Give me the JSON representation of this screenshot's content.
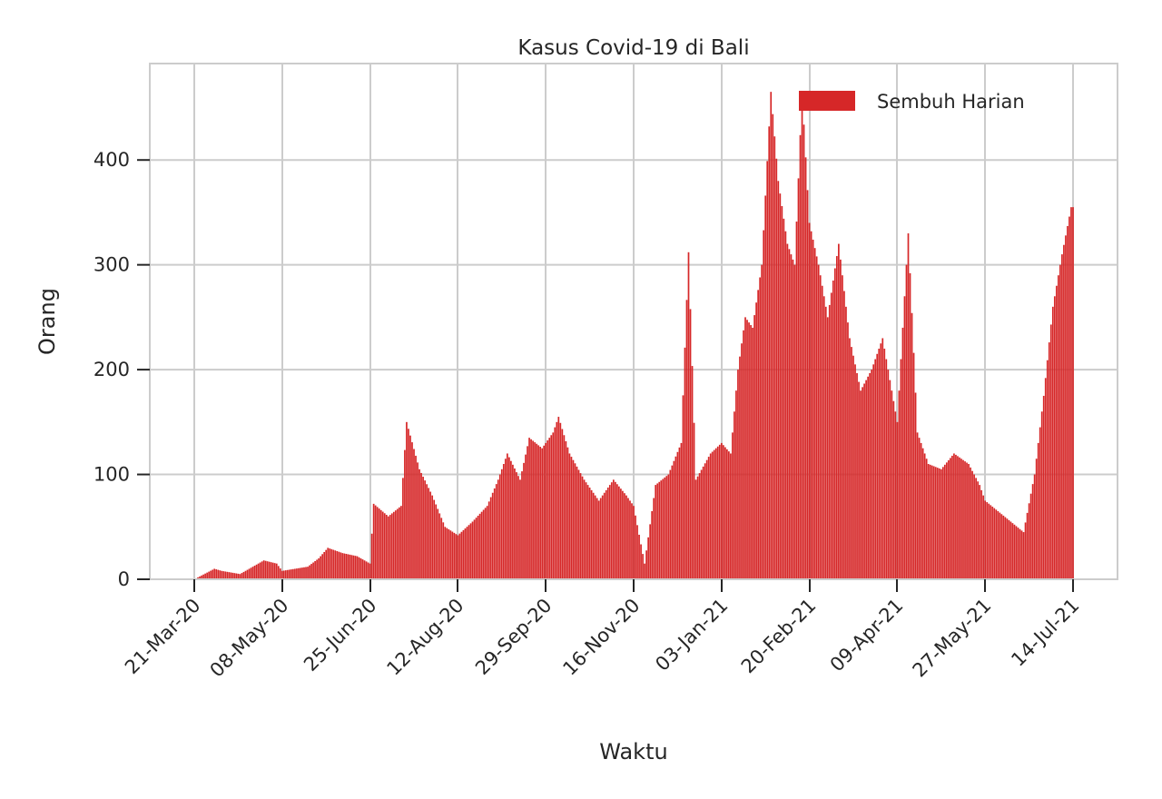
{
  "chart_data": {
    "type": "bar",
    "title": "Kasus Covid-19 di Bali",
    "xlabel": "Waktu",
    "ylabel": "Orang",
    "series": [
      {
        "name": "Sembuh Harian",
        "color": "#d62728",
        "x_start": "2020-03-10",
        "x_end": "2021-07-14",
        "points": [
          [
            "2020-03-21",
            0
          ],
          [
            "2020-04-01",
            10
          ],
          [
            "2020-04-05",
            8
          ],
          [
            "2020-04-15",
            5
          ],
          [
            "2020-04-22",
            12
          ],
          [
            "2020-04-28",
            18
          ],
          [
            "2020-05-05",
            15
          ],
          [
            "2020-05-08",
            8
          ],
          [
            "2020-05-15",
            10
          ],
          [
            "2020-05-22",
            12
          ],
          [
            "2020-05-28",
            20
          ],
          [
            "2020-06-02",
            30
          ],
          [
            "2020-06-10",
            25
          ],
          [
            "2020-06-18",
            22
          ],
          [
            "2020-06-25",
            15
          ],
          [
            "2020-06-27",
            72
          ],
          [
            "2020-07-05",
            60
          ],
          [
            "2020-07-12",
            70
          ],
          [
            "2020-07-15",
            150
          ],
          [
            "2020-07-22",
            105
          ],
          [
            "2020-07-29",
            80
          ],
          [
            "2020-08-05",
            50
          ],
          [
            "2020-08-12",
            42
          ],
          [
            "2020-08-20",
            55
          ],
          [
            "2020-08-28",
            70
          ],
          [
            "2020-09-03",
            95
          ],
          [
            "2020-09-08",
            120
          ],
          [
            "2020-09-15",
            95
          ],
          [
            "2020-09-20",
            135
          ],
          [
            "2020-09-27",
            125
          ],
          [
            "2020-10-03",
            140
          ],
          [
            "2020-10-06",
            155
          ],
          [
            "2020-10-12",
            120
          ],
          [
            "2020-10-20",
            95
          ],
          [
            "2020-10-28",
            75
          ],
          [
            "2020-11-05",
            95
          ],
          [
            "2020-11-12",
            80
          ],
          [
            "2020-11-16",
            70
          ],
          [
            "2020-11-22",
            15
          ],
          [
            "2020-11-28",
            90
          ],
          [
            "2020-12-05",
            100
          ],
          [
            "2020-12-12",
            130
          ],
          [
            "2020-12-16",
            312
          ],
          [
            "2020-12-20",
            95
          ],
          [
            "2020-12-28",
            120
          ],
          [
            "2021-01-03",
            130
          ],
          [
            "2021-01-08",
            120
          ],
          [
            "2021-01-12",
            200
          ],
          [
            "2021-01-16",
            250
          ],
          [
            "2021-01-20",
            240
          ],
          [
            "2021-01-25",
            300
          ],
          [
            "2021-01-30",
            465
          ],
          [
            "2021-02-03",
            380
          ],
          [
            "2021-02-08",
            320
          ],
          [
            "2021-02-12",
            300
          ],
          [
            "2021-02-16",
            465
          ],
          [
            "2021-02-20",
            340
          ],
          [
            "2021-02-25",
            300
          ],
          [
            "2021-03-02",
            250
          ],
          [
            "2021-03-08",
            320
          ],
          [
            "2021-03-14",
            230
          ],
          [
            "2021-03-20",
            180
          ],
          [
            "2021-03-26",
            200
          ],
          [
            "2021-04-01",
            230
          ],
          [
            "2021-04-06",
            180
          ],
          [
            "2021-04-09",
            150
          ],
          [
            "2021-04-15",
            330
          ],
          [
            "2021-04-20",
            140
          ],
          [
            "2021-04-26",
            110
          ],
          [
            "2021-05-03",
            105
          ],
          [
            "2021-05-10",
            120
          ],
          [
            "2021-05-18",
            110
          ],
          [
            "2021-05-24",
            90
          ],
          [
            "2021-05-27",
            75
          ],
          [
            "2021-06-03",
            65
          ],
          [
            "2021-06-10",
            55
          ],
          [
            "2021-06-17",
            45
          ],
          [
            "2021-06-23",
            100
          ],
          [
            "2021-06-28",
            175
          ],
          [
            "2021-07-03",
            260
          ],
          [
            "2021-07-08",
            310
          ],
          [
            "2021-07-13",
            355
          ]
        ]
      }
    ],
    "x_ticks": [
      "21-Mar-20",
      "08-May-20",
      "25-Jun-20",
      "12-Aug-20",
      "29-Sep-20",
      "16-Nov-20",
      "03-Jan-21",
      "20-Feb-21",
      "09-Apr-21",
      "27-May-21",
      "14-Jul-21"
    ],
    "y_ticks": [
      0,
      100,
      200,
      300,
      400
    ],
    "ylim": [
      0,
      492
    ],
    "grid": true,
    "legend": "top-right"
  }
}
